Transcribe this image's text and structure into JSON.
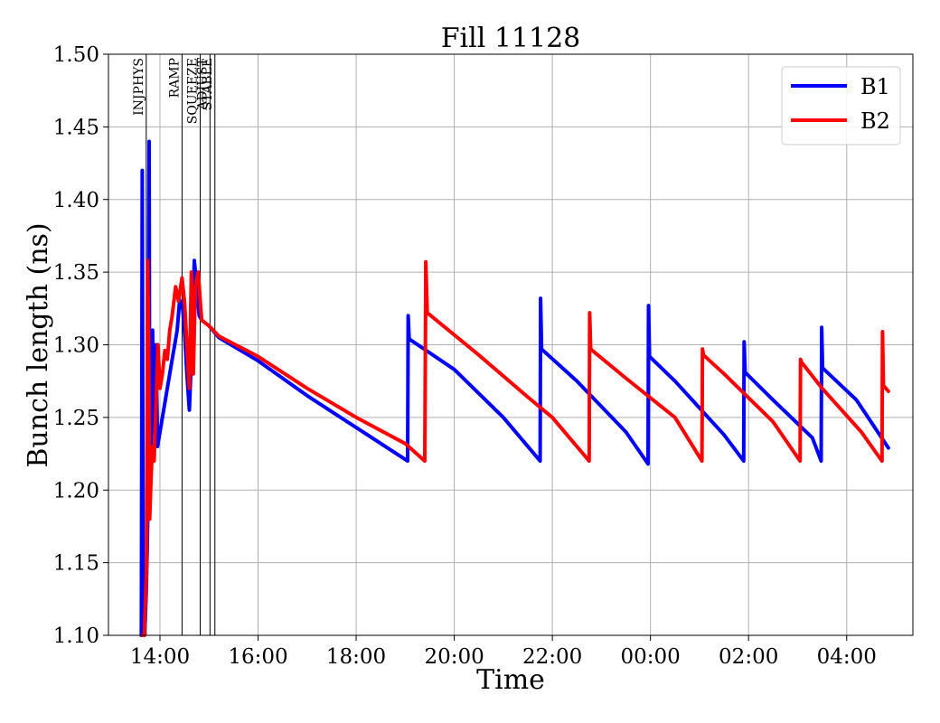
{
  "chart_data": {
    "type": "line",
    "title": "Fill 11128",
    "xlabel": "Time",
    "ylabel": "Bunch length (ns)",
    "x_axis": "time (hours since 00:00 of fill start day)",
    "xlim": [
      12.95,
      29.35
    ],
    "ylim": [
      1.1,
      1.5
    ],
    "xticks": [
      {
        "value": 14,
        "label": "14:00"
      },
      {
        "value": 16,
        "label": "16:00"
      },
      {
        "value": 18,
        "label": "18:00"
      },
      {
        "value": 20,
        "label": "20:00"
      },
      {
        "value": 22,
        "label": "22:00"
      },
      {
        "value": 24,
        "label": "00:00"
      },
      {
        "value": 26,
        "label": "02:00"
      },
      {
        "value": 28,
        "label": "04:00"
      }
    ],
    "yticks": [
      {
        "value": 1.1,
        "label": "1.10"
      },
      {
        "value": 1.15,
        "label": "1.15"
      },
      {
        "value": 1.2,
        "label": "1.20"
      },
      {
        "value": 1.25,
        "label": "1.25"
      },
      {
        "value": 1.3,
        "label": "1.30"
      },
      {
        "value": 1.35,
        "label": "1.35"
      },
      {
        "value": 1.4,
        "label": "1.40"
      },
      {
        "value": 1.45,
        "label": "1.45"
      },
      {
        "value": 1.5,
        "label": "1.50"
      }
    ],
    "grid": true,
    "legend": {
      "position": "top-right"
    },
    "phases": [
      {
        "label": "INJPHYS",
        "x": 13.72
      },
      {
        "label": "RAMP",
        "x": 14.45
      },
      {
        "label": "SQUEEZE",
        "x": 14.82
      },
      {
        "label": "ADJUST",
        "x": 15.02
      },
      {
        "label": "STABLE",
        "x": 15.12
      }
    ],
    "series": [
      {
        "name": "B1",
        "color": "#0000ff",
        "points": [
          [
            13.62,
            1.1
          ],
          [
            13.64,
            1.42
          ],
          [
            13.66,
            1.1
          ],
          [
            13.68,
            1.1
          ],
          [
            13.7,
            1.11
          ],
          [
            13.72,
            1.13
          ],
          [
            13.74,
            1.16
          ],
          [
            13.76,
            1.2
          ],
          [
            13.78,
            1.44
          ],
          [
            13.79,
            1.21
          ],
          [
            13.82,
            1.23
          ],
          [
            13.85,
            1.31
          ],
          [
            13.88,
            1.24
          ],
          [
            13.92,
            1.3
          ],
          [
            13.95,
            1.23
          ],
          [
            14.0,
            1.24
          ],
          [
            14.05,
            1.25
          ],
          [
            14.1,
            1.26
          ],
          [
            14.15,
            1.27
          ],
          [
            14.2,
            1.28
          ],
          [
            14.25,
            1.29
          ],
          [
            14.3,
            1.3
          ],
          [
            14.35,
            1.31
          ],
          [
            14.4,
            1.33
          ],
          [
            14.45,
            1.33
          ],
          [
            14.5,
            1.31
          ],
          [
            14.55,
            1.28
          ],
          [
            14.6,
            1.255
          ],
          [
            14.65,
            1.3
          ],
          [
            14.7,
            1.358
          ],
          [
            14.75,
            1.34
          ],
          [
            14.8,
            1.32
          ],
          [
            14.85,
            1.317
          ],
          [
            15.0,
            1.313
          ],
          [
            15.2,
            1.305
          ],
          [
            16.0,
            1.289
          ],
          [
            17.0,
            1.265
          ],
          [
            18.0,
            1.243
          ],
          [
            19.05,
            1.22
          ],
          [
            19.06,
            1.32
          ],
          [
            19.08,
            1.304
          ],
          [
            20.0,
            1.283
          ],
          [
            21.0,
            1.25
          ],
          [
            21.75,
            1.22
          ],
          [
            21.76,
            1.332
          ],
          [
            21.78,
            1.297
          ],
          [
            22.5,
            1.275
          ],
          [
            23.5,
            1.24
          ],
          [
            23.95,
            1.218
          ],
          [
            23.96,
            1.327
          ],
          [
            23.98,
            1.292
          ],
          [
            24.5,
            1.275
          ],
          [
            25.5,
            1.238
          ],
          [
            25.9,
            1.22
          ],
          [
            25.91,
            1.302
          ],
          [
            25.93,
            1.281
          ],
          [
            26.5,
            1.262
          ],
          [
            27.3,
            1.236
          ],
          [
            27.48,
            1.22
          ],
          [
            27.49,
            1.312
          ],
          [
            27.51,
            1.284
          ],
          [
            28.2,
            1.262
          ],
          [
            28.85,
            1.229
          ]
        ]
      },
      {
        "name": "B2",
        "color": "#ff0000",
        "points": [
          [
            13.65,
            1.1
          ],
          [
            13.68,
            1.1
          ],
          [
            13.7,
            1.12
          ],
          [
            13.73,
            1.15
          ],
          [
            13.75,
            1.358
          ],
          [
            13.77,
            1.3
          ],
          [
            13.79,
            1.18
          ],
          [
            13.82,
            1.21
          ],
          [
            13.85,
            1.23
          ],
          [
            13.88,
            1.22
          ],
          [
            13.92,
            1.26
          ],
          [
            13.96,
            1.3
          ],
          [
            14.0,
            1.27
          ],
          [
            14.05,
            1.28
          ],
          [
            14.1,
            1.296
          ],
          [
            14.15,
            1.29
          ],
          [
            14.2,
            1.31
          ],
          [
            14.25,
            1.32
          ],
          [
            14.32,
            1.34
          ],
          [
            14.38,
            1.33
          ],
          [
            14.45,
            1.346
          ],
          [
            14.5,
            1.33
          ],
          [
            14.55,
            1.3
          ],
          [
            14.6,
            1.27
          ],
          [
            14.64,
            1.35
          ],
          [
            14.68,
            1.28
          ],
          [
            14.72,
            1.34
          ],
          [
            14.78,
            1.35
          ],
          [
            14.85,
            1.317
          ],
          [
            15.0,
            1.313
          ],
          [
            15.2,
            1.306
          ],
          [
            16.0,
            1.292
          ],
          [
            17.0,
            1.27
          ],
          [
            18.0,
            1.25
          ],
          [
            19.0,
            1.232
          ],
          [
            19.4,
            1.22
          ],
          [
            19.42,
            1.357
          ],
          [
            19.45,
            1.322
          ],
          [
            20.5,
            1.293
          ],
          [
            21.5,
            1.264
          ],
          [
            22.0,
            1.25
          ],
          [
            22.75,
            1.22
          ],
          [
            22.76,
            1.322
          ],
          [
            22.78,
            1.297
          ],
          [
            23.5,
            1.277
          ],
          [
            24.5,
            1.25
          ],
          [
            25.05,
            1.22
          ],
          [
            25.06,
            1.297
          ],
          [
            25.08,
            1.293
          ],
          [
            25.5,
            1.28
          ],
          [
            26.5,
            1.247
          ],
          [
            27.05,
            1.22
          ],
          [
            27.06,
            1.29
          ],
          [
            27.08,
            1.288
          ],
          [
            27.5,
            1.27
          ],
          [
            28.3,
            1.24
          ],
          [
            28.72,
            1.22
          ],
          [
            28.73,
            1.309
          ],
          [
            28.75,
            1.272
          ],
          [
            28.85,
            1.268
          ]
        ]
      }
    ]
  }
}
